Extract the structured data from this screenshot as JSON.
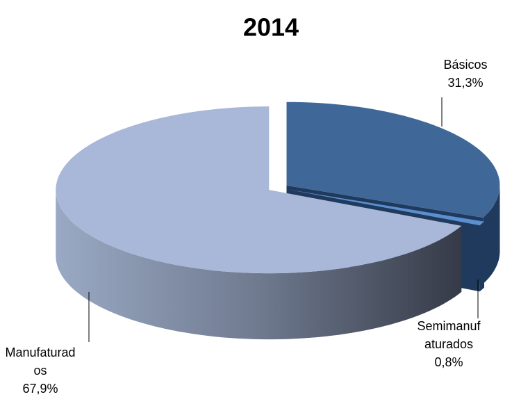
{
  "chart_data": {
    "type": "pie",
    "title": "2014",
    "categories": [
      "Básicos",
      "Semimanufaturados",
      "Manufaturados"
    ],
    "values": [
      31.3,
      0.8,
      67.9
    ],
    "value_labels": [
      "31,3%",
      "0,8%",
      "67,9%"
    ],
    "colors": [
      "#3f6899",
      "#5b8fd0",
      "#a9b8d8"
    ]
  }
}
